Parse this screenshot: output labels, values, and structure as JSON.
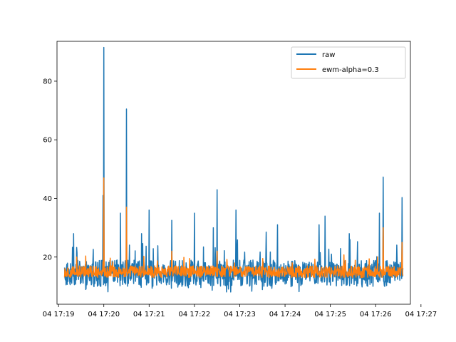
{
  "chart_data": {
    "type": "line",
    "title": "",
    "xlabel": "",
    "ylabel": "",
    "x_range": [
      "04 17:18:58",
      "04 17:26:46"
    ],
    "ylim": [
      3.9,
      93.6
    ],
    "grid": false,
    "legend_position": "top-right",
    "x_ticks": [
      "04 17:19",
      "04 17:20",
      "04 17:21",
      "04 17:22",
      "04 17:23",
      "04 17:24",
      "04 17:25",
      "04 17:26",
      "04 17:27"
    ],
    "y_ticks": [
      20,
      40,
      60,
      80
    ],
    "series": [
      {
        "name": "raw",
        "color": "#1f77b4",
        "baseline": {
          "low": 10,
          "high": 19
        },
        "spikes": [
          {
            "t": "17:19:03",
            "v": 33.8
          },
          {
            "t": "17:19:20",
            "v": 28
          },
          {
            "t": "17:20:00",
            "v": 91.5
          },
          {
            "t": "17:19:59",
            "v": 41
          },
          {
            "t": "17:20:22",
            "v": 35
          },
          {
            "t": "17:20:30",
            "v": 70.5
          },
          {
            "t": "17:20:50",
            "v": 28
          },
          {
            "t": "17:21:00",
            "v": 36
          },
          {
            "t": "17:21:30",
            "v": 32.5
          },
          {
            "t": "17:22:00",
            "v": 35
          },
          {
            "t": "17:22:25",
            "v": 30
          },
          {
            "t": "17:22:30",
            "v": 43
          },
          {
            "t": "17:22:55",
            "v": 36
          },
          {
            "t": "17:23:35",
            "v": 28.5
          },
          {
            "t": "17:23:50",
            "v": 31
          },
          {
            "t": "17:24:45",
            "v": 31
          },
          {
            "t": "17:24:53",
            "v": 34
          },
          {
            "t": "17:25:25",
            "v": 28
          },
          {
            "t": "17:26:05",
            "v": 35
          },
          {
            "t": "17:26:10",
            "v": 47.3
          },
          {
            "t": "17:26:35",
            "v": 40.3
          }
        ]
      },
      {
        "name": "ewm-alpha=0.3",
        "color": "#ff7f0e",
        "baseline": {
          "low": 13,
          "high": 17
        },
        "spikes": [
          {
            "t": "17:20:00",
            "v": 47
          },
          {
            "t": "17:20:30",
            "v": 37
          },
          {
            "t": "17:21:30",
            "v": 22
          },
          {
            "t": "17:22:30",
            "v": 22
          },
          {
            "t": "17:26:10",
            "v": 30
          },
          {
            "t": "17:26:35",
            "v": 25
          }
        ]
      }
    ]
  }
}
